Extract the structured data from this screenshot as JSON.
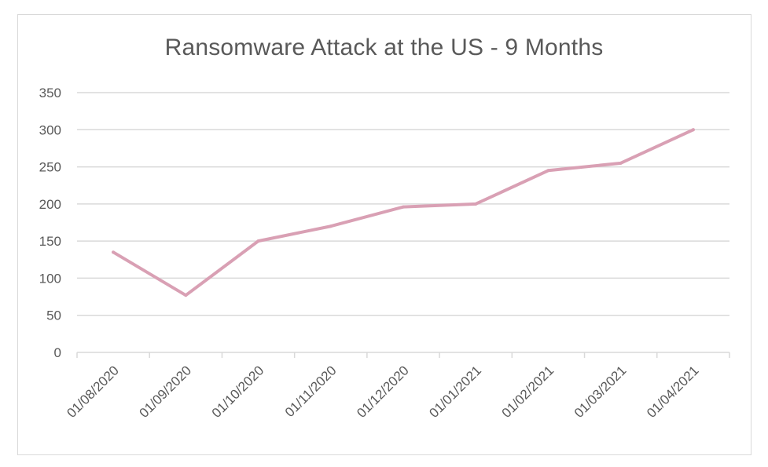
{
  "chart_data": {
    "type": "line",
    "title": "Ransomware Attack at the US - 9 Months",
    "xlabel": "",
    "ylabel": "",
    "categories": [
      "01/08/2020",
      "01/09/2020",
      "01/10/2020",
      "01/11/2020",
      "01/12/2020",
      "01/01/2021",
      "01/02/2021",
      "01/03/2021",
      "01/04/2021"
    ],
    "series": [
      {
        "values": [
          135,
          77,
          150,
          170,
          196,
          200,
          245,
          255,
          300
        ]
      }
    ],
    "ylim": [
      0,
      350
    ],
    "yticks": [
      0,
      50,
      100,
      150,
      200,
      250,
      300,
      350
    ],
    "grid": true,
    "legend": "none",
    "colors": {
      "line": "#d9a0b4",
      "grid": "#d9d9d9",
      "text": "#595959"
    }
  }
}
